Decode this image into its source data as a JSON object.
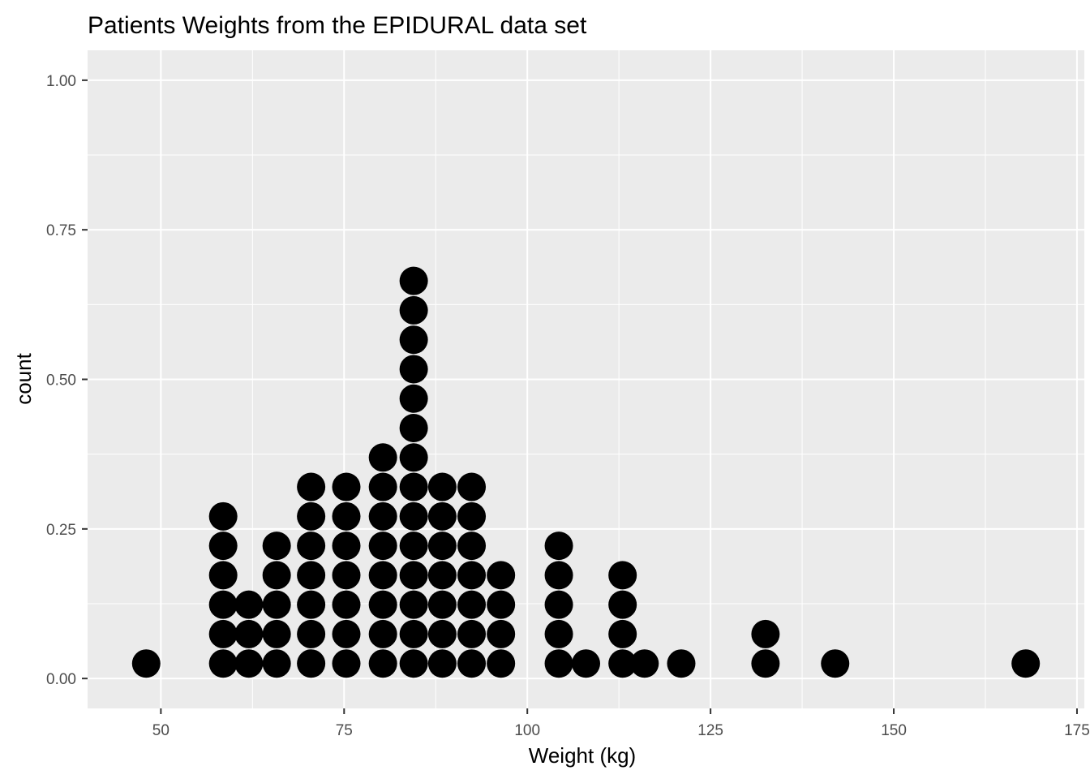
{
  "chart_data": {
    "type": "scatter",
    "subtype": "dotplot",
    "title": "Patients Weights from the EPIDURAL data set",
    "xlabel": "Weight (kg)",
    "ylabel": "count",
    "xlim": [
      40,
      176
    ],
    "ylim": [
      -0.05,
      1.05
    ],
    "x_ticks": [
      50,
      75,
      100,
      125,
      150,
      175
    ],
    "x_tick_labels": [
      "50",
      "75",
      "100",
      "125",
      "150",
      "175"
    ],
    "y_ticks": [
      0.0,
      0.25,
      0.5,
      0.75,
      1.0
    ],
    "y_tick_labels": [
      "0.00",
      "0.25",
      "0.50",
      "0.75",
      "1.00"
    ],
    "grid": true,
    "background": "#ebebeb",
    "grid_color": "#ffffff",
    "dot_color": "#000000",
    "stacks": [
      {
        "x": 48.0,
        "count": 1
      },
      {
        "x": 58.5,
        "count": 6
      },
      {
        "x": 62.0,
        "count": 3
      },
      {
        "x": 65.8,
        "count": 5
      },
      {
        "x": 70.5,
        "count": 7
      },
      {
        "x": 75.3,
        "count": 7
      },
      {
        "x": 80.3,
        "count": 8
      },
      {
        "x": 84.5,
        "count": 14
      },
      {
        "x": 88.4,
        "count": 7
      },
      {
        "x": 92.4,
        "count": 7
      },
      {
        "x": 96.4,
        "count": 4
      },
      {
        "x": 104.3,
        "count": 5
      },
      {
        "x": 108.0,
        "count": 1
      },
      {
        "x": 113.0,
        "count": 4
      },
      {
        "x": 116.0,
        "count": 1
      },
      {
        "x": 121.0,
        "count": 1
      },
      {
        "x": 132.5,
        "count": 2
      },
      {
        "x": 142.0,
        "count": 1
      },
      {
        "x": 168.0,
        "count": 1
      }
    ]
  }
}
